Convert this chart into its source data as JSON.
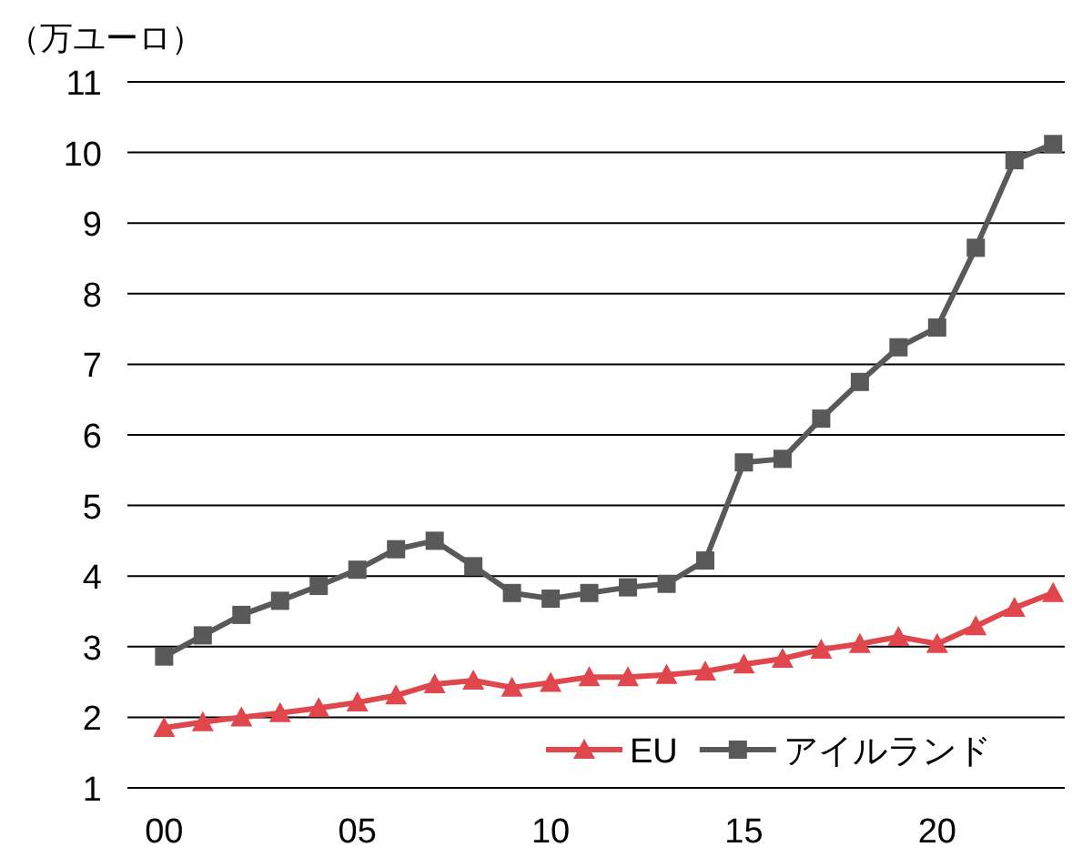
{
  "chart_data": {
    "type": "line",
    "ylabel": "（万ユーロ）",
    "x": [
      2000,
      2001,
      2002,
      2003,
      2004,
      2005,
      2006,
      2007,
      2008,
      2009,
      2010,
      2011,
      2012,
      2013,
      2014,
      2015,
      2016,
      2017,
      2018,
      2019,
      2020,
      2021,
      2022,
      2023
    ],
    "xlim": [
      1999.05,
      2023.3
    ],
    "xticks": [
      {
        "value": 2000,
        "label": "00"
      },
      {
        "value": 2005,
        "label": "05"
      },
      {
        "value": 2010,
        "label": "10"
      },
      {
        "value": 2015,
        "label": "15"
      },
      {
        "value": 2020,
        "label": "20"
      }
    ],
    "ylim": [
      1,
      11
    ],
    "yticks": [
      1,
      2,
      3,
      4,
      5,
      6,
      7,
      8,
      9,
      10,
      11
    ],
    "grid": "y",
    "legend": "bottom right",
    "series": [
      {
        "name": "EU",
        "color": "#e0474c",
        "marker": "triangle",
        "values": [
          1.85,
          1.93,
          2.0,
          2.06,
          2.13,
          2.21,
          2.31,
          2.47,
          2.52,
          2.42,
          2.49,
          2.57,
          2.57,
          2.6,
          2.65,
          2.75,
          2.83,
          2.96,
          3.04,
          3.14,
          3.04,
          3.29,
          3.55,
          3.76
        ]
      },
      {
        "name": "アイルランド",
        "color": "#595959",
        "marker": "square",
        "values": [
          2.86,
          3.16,
          3.45,
          3.65,
          3.86,
          4.09,
          4.38,
          4.5,
          4.14,
          3.76,
          3.68,
          3.76,
          3.84,
          3.89,
          4.22,
          5.61,
          5.66,
          6.23,
          6.75,
          7.24,
          7.52,
          8.65,
          9.89,
          10.12
        ]
      }
    ]
  }
}
